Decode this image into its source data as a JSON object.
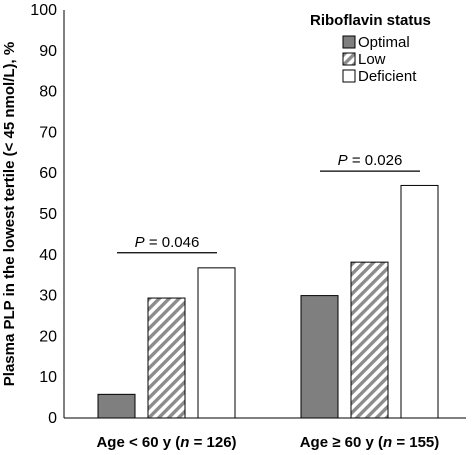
{
  "chart_data": {
    "type": "bar",
    "title": "",
    "ylabel": "Plasma PLP in the lowest tertile (< 45 nmol/L), %",
    "ylim": [
      0,
      100
    ],
    "yticks": [
      "0",
      "10",
      "20",
      "30",
      "40",
      "50",
      "60",
      "70",
      "80",
      "90",
      "100"
    ],
    "categories": [
      {
        "prefix": "Age < 60 y (",
        "n_label": "n",
        "suffix": " = 126)"
      },
      {
        "prefix": "Age ≥ 60 y (",
        "n_label": "n",
        "suffix": " = 155)"
      }
    ],
    "legend": {
      "title": "Riboflavin status",
      "placement": "top-right"
    },
    "series": [
      {
        "name": "Optimal",
        "values": [
          5.8,
          30.0
        ],
        "fill": "#7f7f7f",
        "pattern": "solid"
      },
      {
        "name": "Low",
        "values": [
          29.4,
          38.2
        ],
        "fill": "#ffffff",
        "pattern": "diagonal-stripes",
        "stripe_color": "#8c8c8c"
      },
      {
        "name": "Deficient",
        "values": [
          36.8,
          57.0
        ],
        "fill": "#ffffff",
        "pattern": "none"
      }
    ],
    "annotations": [
      {
        "group": 0,
        "p_label": "P",
        "value_text": " = 0.046",
        "line_y": 40.5
      },
      {
        "group": 1,
        "p_label": "P",
        "value_text": " = 0.026",
        "line_y": 60.5
      }
    ],
    "grid": false
  }
}
